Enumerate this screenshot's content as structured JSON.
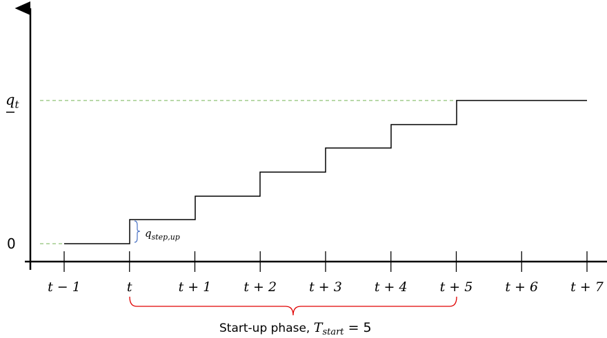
{
  "y_labels": {
    "max": "q",
    "max_sub": "t",
    "zero": "0"
  },
  "x_ticks": [
    "t − 1",
    "t",
    "t + 1",
    "t + 2",
    "t + 3",
    "t + 4",
    "t + 5",
    "t + 6",
    "t + 7"
  ],
  "step_label": {
    "base": "q",
    "sub": "step,up"
  },
  "phase_label": {
    "text": "Start-up phase, ",
    "symbol": "T",
    "sub": "start",
    "equals": " = 5"
  },
  "colors": {
    "axis": "#000000",
    "step_line": "#000000",
    "guide_line": "#70b050",
    "step_brace": "#4a72c4",
    "phase_brace": "#e00000"
  }
}
